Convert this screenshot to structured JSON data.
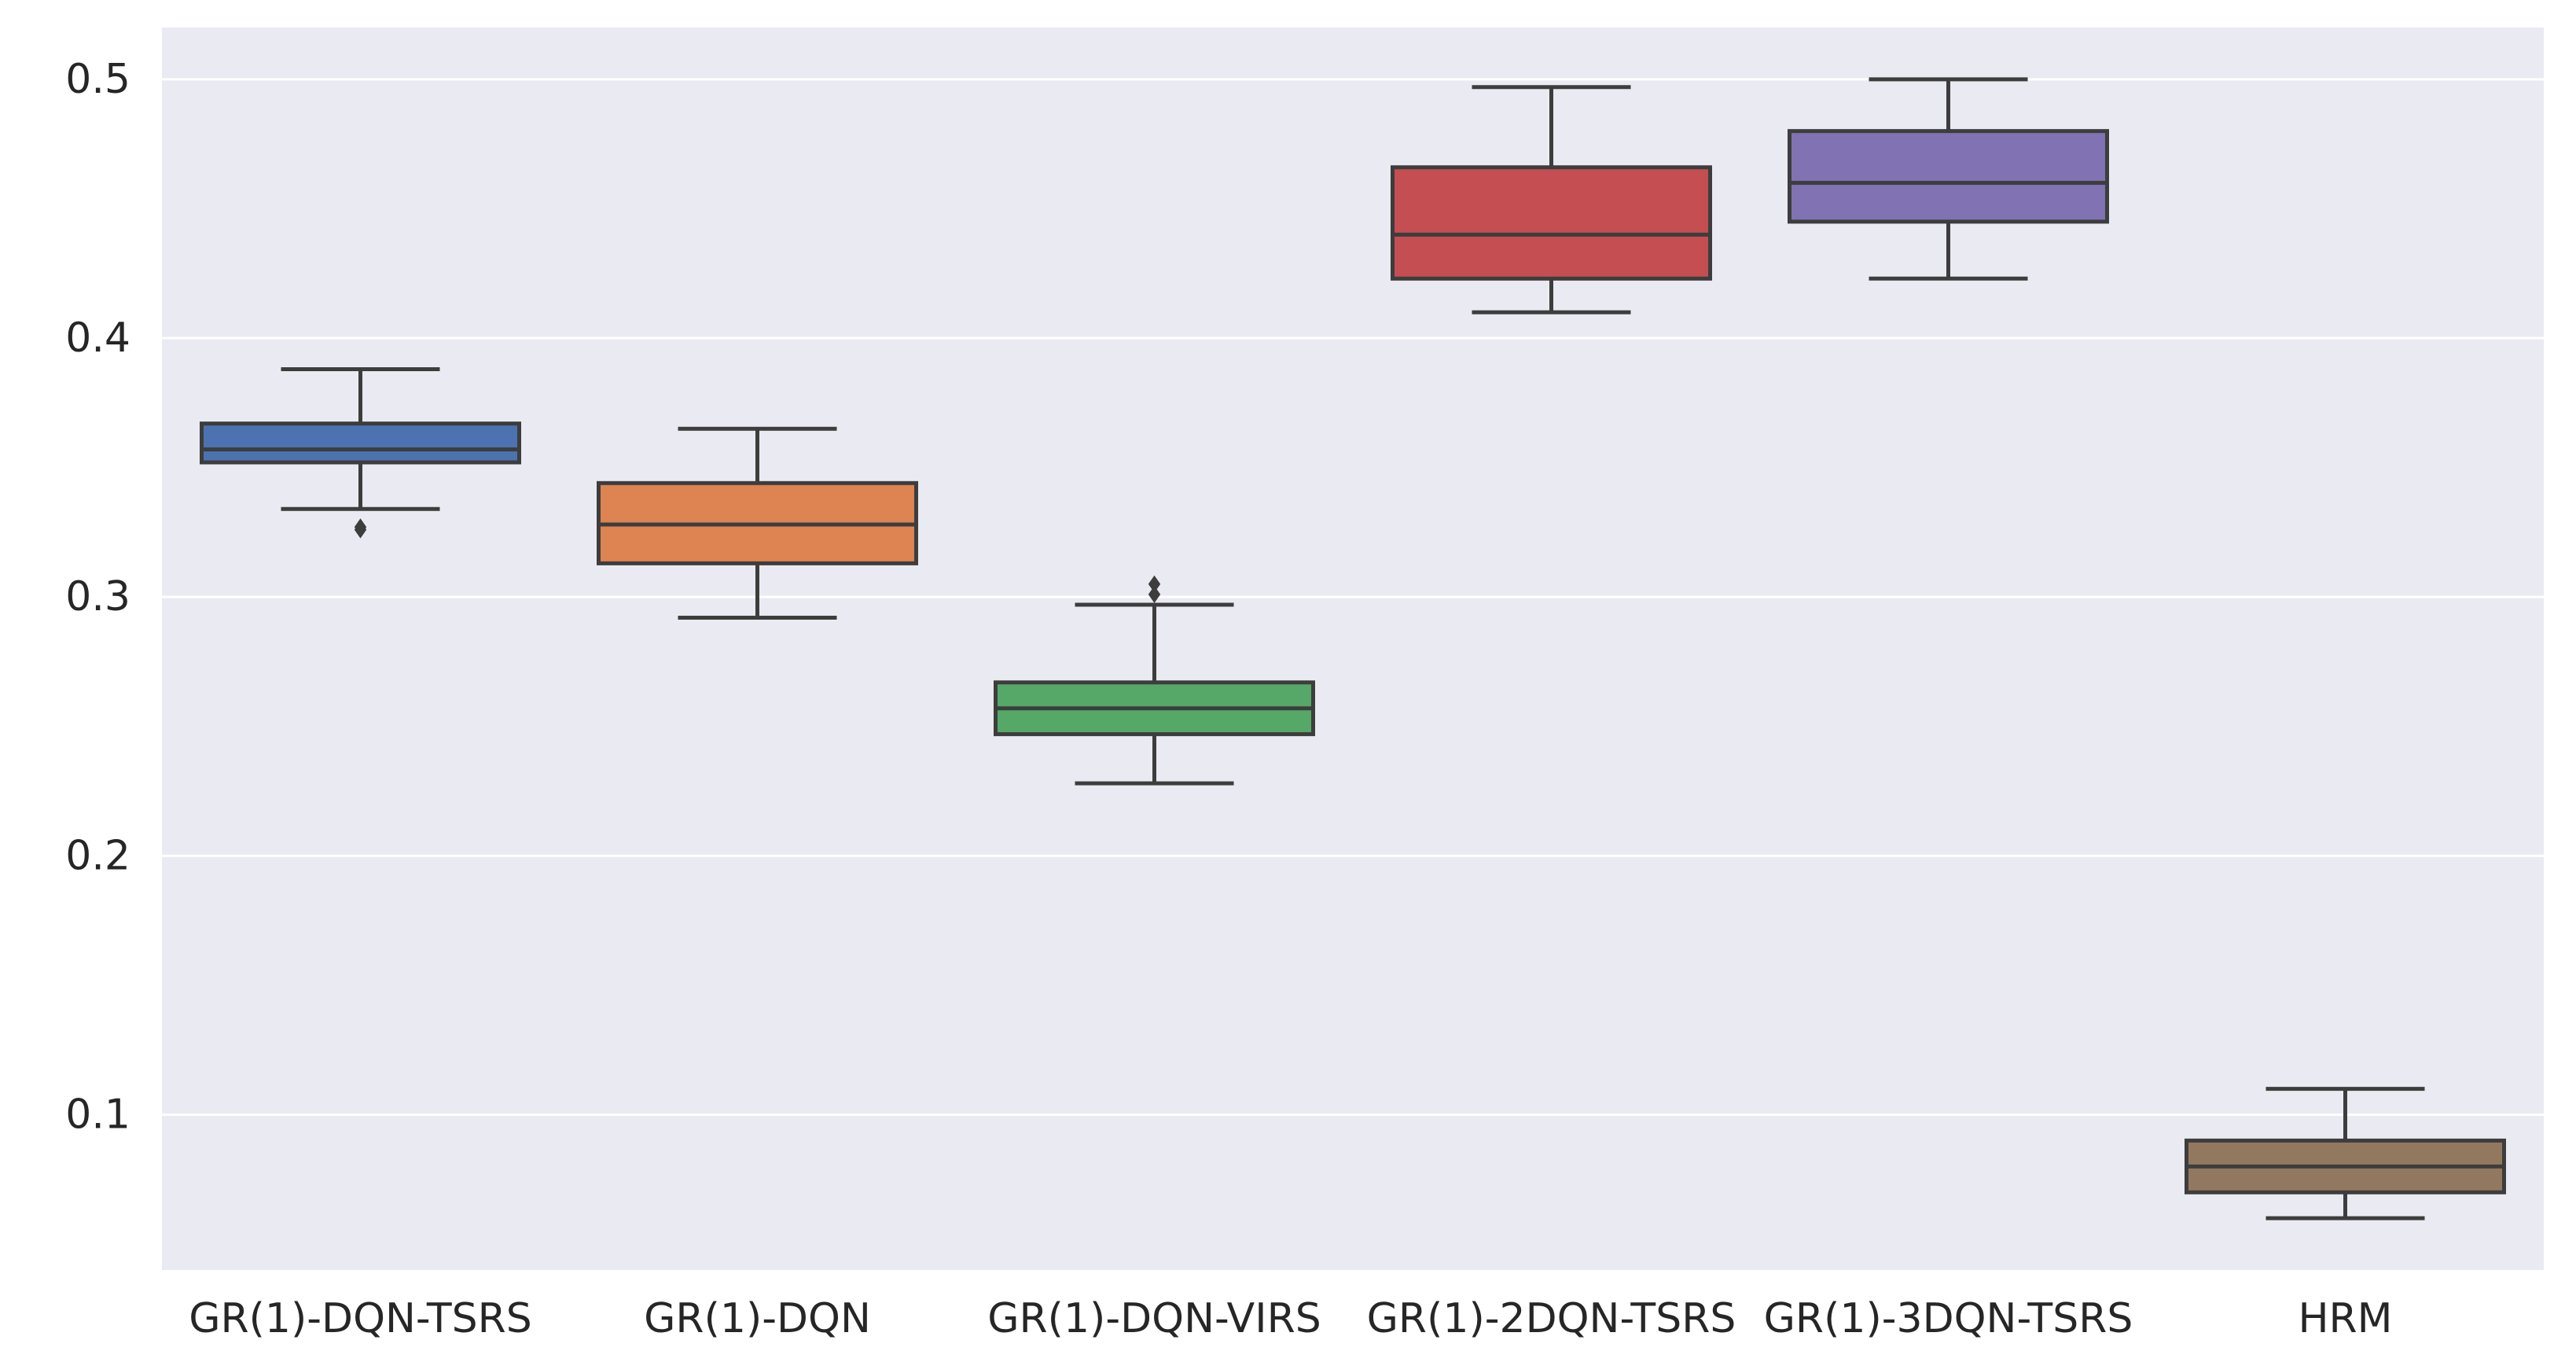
{
  "chart_data": {
    "type": "box",
    "title": "",
    "xlabel": "",
    "ylabel": "",
    "ylim": [
      0.04,
      0.52
    ],
    "yticks": [
      0.1,
      0.2,
      0.3,
      0.4,
      0.5
    ],
    "ytick_labels": [
      "0.1",
      "0.2",
      "0.3",
      "0.4",
      "0.5"
    ],
    "grid": true,
    "legend": "none",
    "categories": [
      "GR(1)-DQN-TSRS",
      "GR(1)-DQN",
      "GR(1)-DQN-VIRS",
      "GR(1)-2DQN-TSRS",
      "GR(1)-3DQN-TSRS",
      "HRM"
    ],
    "boxes": [
      {
        "name": "GR(1)-DQN-TSRS",
        "color": "#4c72b0",
        "whisker_low": 0.334,
        "q1": 0.352,
        "median": 0.357,
        "q3": 0.367,
        "whisker_high": 0.388,
        "outliers": [
          0.327,
          0.326
        ]
      },
      {
        "name": "GR(1)-DQN",
        "color": "#dd8452",
        "whisker_low": 0.292,
        "q1": 0.313,
        "median": 0.328,
        "q3": 0.344,
        "whisker_high": 0.365,
        "outliers": []
      },
      {
        "name": "GR(1)-DQN-VIRS",
        "color": "#55a868",
        "whisker_low": 0.228,
        "q1": 0.247,
        "median": 0.257,
        "q3": 0.267,
        "whisker_high": 0.297,
        "outliers": [
          0.305,
          0.301
        ]
      },
      {
        "name": "GR(1)-2DQN-TSRS",
        "color": "#c44e52",
        "whisker_low": 0.41,
        "q1": 0.423,
        "median": 0.44,
        "q3": 0.466,
        "whisker_high": 0.497,
        "outliers": []
      },
      {
        "name": "GR(1)-3DQN-TSRS",
        "color": "#8172b3",
        "whisker_low": 0.423,
        "q1": 0.445,
        "median": 0.46,
        "q3": 0.48,
        "whisker_high": 0.5,
        "outliers": []
      },
      {
        "name": "HRM",
        "color": "#937860",
        "whisker_low": 0.06,
        "q1": 0.07,
        "median": 0.08,
        "q3": 0.09,
        "whisker_high": 0.11,
        "outliers": []
      }
    ],
    "style": {
      "background": "#eaeaf2",
      "grid_color": "#ffffff",
      "line_color": "#3d3d3d"
    }
  }
}
